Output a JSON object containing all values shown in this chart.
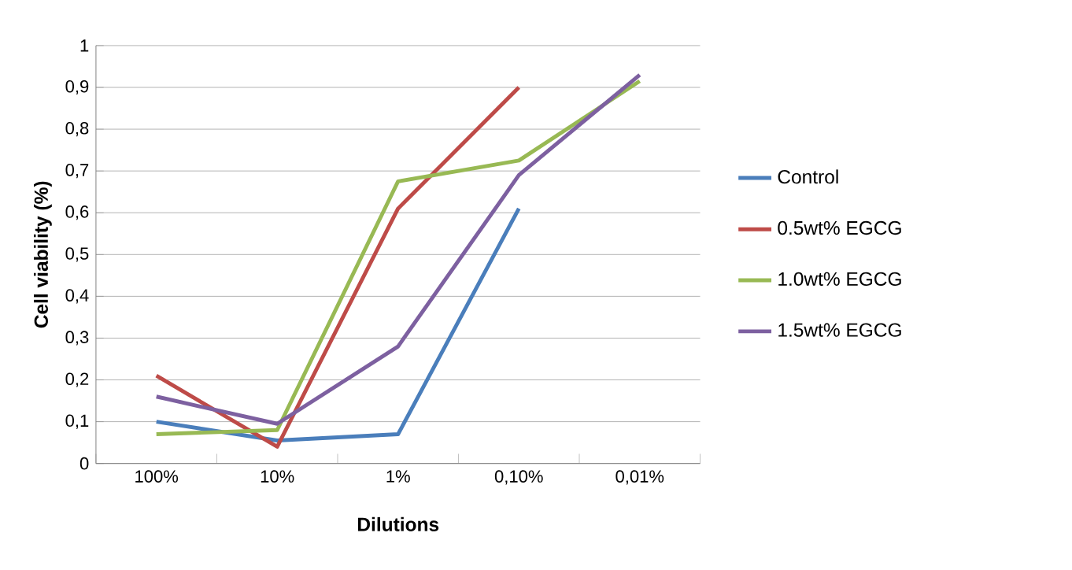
{
  "chart_data": {
    "type": "line",
    "xlabel": "Dilutions",
    "ylabel": "Cell viability (%)",
    "categories": [
      "100%",
      "10%",
      "1%",
      "0,10%",
      "0,01%"
    ],
    "series": [
      {
        "name": "Control",
        "color": "#4a7ebb",
        "values": [
          0.1,
          0.055,
          0.07,
          0.61,
          null
        ]
      },
      {
        "name": "0.5wt% EGCG",
        "color": "#be4b48",
        "values": [
          0.21,
          0.04,
          0.61,
          0.9,
          null
        ]
      },
      {
        "name": "1.0wt% EGCG",
        "color": "#98b954",
        "values": [
          0.07,
          0.08,
          0.675,
          0.725,
          0.915
        ]
      },
      {
        "name": "1.5wt% EGCG",
        "color": "#7d60a0",
        "values": [
          0.16,
          0.095,
          0.28,
          0.69,
          0.93
        ]
      }
    ],
    "ylim": [
      0,
      1
    ],
    "yticks": [
      0,
      {
        "value": 0.1,
        "label": "0,1"
      },
      {
        "value": 0.2,
        "label": "0,2"
      },
      {
        "value": 0.3,
        "label": "0,3"
      },
      {
        "value": 0.4,
        "label": "0,4"
      },
      {
        "value": 0.5,
        "label": "0,5"
      },
      {
        "value": 0.6,
        "label": "0,6"
      },
      {
        "value": 0.7,
        "label": "0,7"
      },
      {
        "value": 0.8,
        "label": "0,8"
      },
      {
        "value": 0.9,
        "label": "0,9"
      },
      1
    ],
    "grid": "y",
    "legend": "right",
    "marker": "none",
    "line_style": "solid"
  }
}
